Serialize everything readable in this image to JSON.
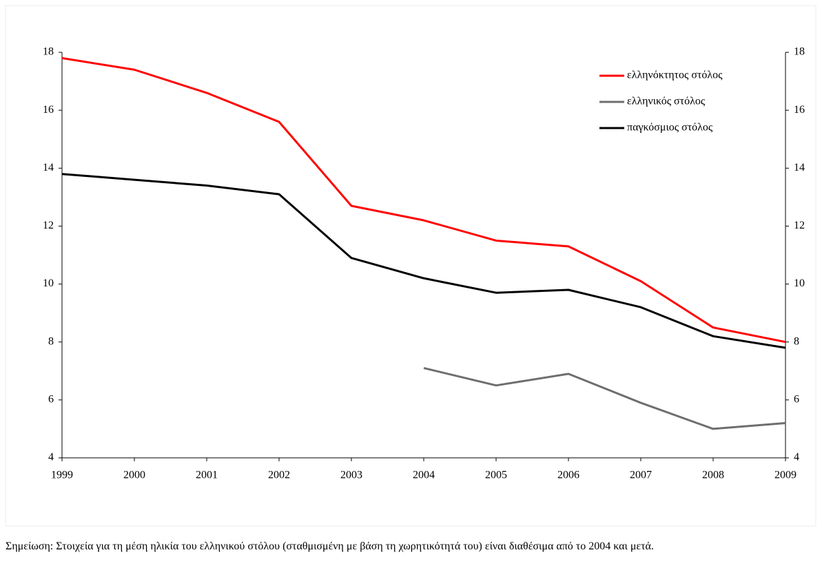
{
  "chart_data": {
    "type": "line",
    "categories": [
      "1999",
      "2000",
      "2001",
      "2002",
      "2003",
      "2004",
      "2005",
      "2006",
      "2007",
      "2008",
      "2009"
    ],
    "series": [
      {
        "name": "ελληνόκτητος στόλος",
        "color": "#ff0000",
        "values": [
          17.8,
          17.4,
          16.6,
          15.6,
          12.7,
          12.2,
          11.5,
          11.3,
          10.1,
          8.5,
          8.0
        ]
      },
      {
        "name": "ελληνικός στόλος",
        "color": "#6e6e6e",
        "values": [
          null,
          null,
          null,
          null,
          null,
          7.1,
          6.5,
          6.9,
          5.9,
          5.0,
          5.2
        ]
      },
      {
        "name": "παγκόσμιος στόλος",
        "color": "#000000",
        "values": [
          13.8,
          13.6,
          13.4,
          13.1,
          10.9,
          10.2,
          9.7,
          9.8,
          9.2,
          8.2,
          7.8
        ]
      }
    ],
    "ylim": [
      4,
      18
    ],
    "yticks": [
      4,
      6,
      8,
      10,
      12,
      14,
      16,
      18
    ],
    "y2lim": [
      4,
      18
    ],
    "y2ticks": [
      4,
      6,
      8,
      10,
      12,
      14,
      16,
      18
    ],
    "legend": "upper right",
    "grid": false,
    "note": "Σημείωση: Στοιχεία για τη μέση ηλικία του ελληνικού στόλου (σταθμισμένη με βάση τη χωρητικότητά του) είναι διαθέσιμα από το 2004 και μετά."
  }
}
